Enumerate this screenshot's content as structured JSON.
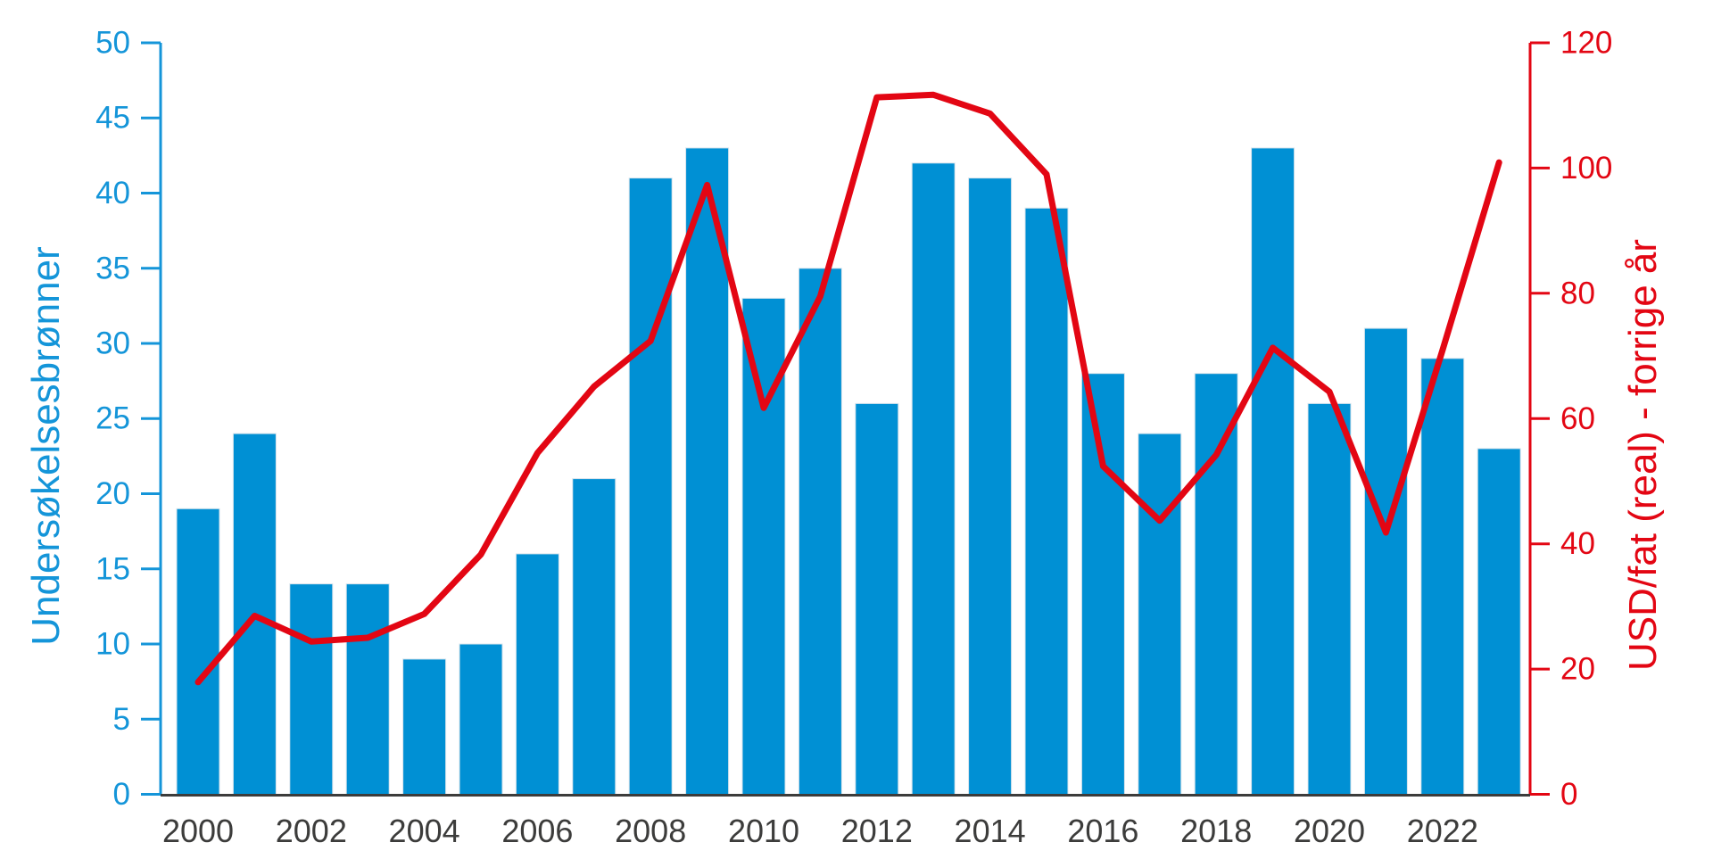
{
  "chart_data": {
    "type": "combo-bar-line",
    "title": "",
    "background": "#ffffff",
    "grid": false,
    "legend": "none",
    "categories": [
      2000,
      2001,
      2002,
      2003,
      2004,
      2005,
      2006,
      2007,
      2008,
      2009,
      2010,
      2011,
      2012,
      2013,
      2014,
      2015,
      2016,
      2017,
      2018,
      2019,
      2020,
      2021,
      2022,
      2023
    ],
    "series": [
      {
        "name": "Undersøkelsesbrønner",
        "type": "bar",
        "axis": "left",
        "color": "#0090d4",
        "edge_color": "#d8e4ec",
        "values": [
          19,
          24,
          14,
          14,
          9,
          10,
          16,
          21,
          41,
          43,
          33,
          35,
          26,
          42,
          41,
          39,
          28,
          24,
          28,
          43,
          26,
          31,
          29,
          23
        ]
      },
      {
        "name": "USD/fat (real) - forrige år",
        "type": "line",
        "axis": "right",
        "color": "#e30613",
        "values": [
          17.9,
          28.5,
          24.4,
          25.0,
          28.8,
          38.3,
          54.5,
          65.1,
          72.4,
          97.3,
          61.7,
          79.5,
          111.3,
          111.7,
          108.7,
          99.0,
          52.4,
          43.7,
          54.2,
          71.3,
          64.3,
          41.8,
          70.9,
          100.9
        ]
      }
    ],
    "left_axis": {
      "label": "Undersøkelsesbrønner",
      "min": 0,
      "max": 50,
      "ticks": [
        0,
        5,
        10,
        15,
        20,
        25,
        30,
        35,
        40,
        45,
        50
      ],
      "color": "#1495d9"
    },
    "right_axis": {
      "label": "USD/fat (real) - forrige år",
      "min": 0,
      "max": 120,
      "ticks": [
        0,
        20,
        40,
        60,
        80,
        100,
        120
      ],
      "color": "#e30613"
    },
    "x_axis": {
      "tick_labels": [
        "2000",
        "2002",
        "2004",
        "2006",
        "2008",
        "2010",
        "2012",
        "2014",
        "2016",
        "2018",
        "2020",
        "2022"
      ],
      "tick_years": [
        2000,
        2002,
        2004,
        2006,
        2008,
        2010,
        2012,
        2014,
        2016,
        2018,
        2020,
        2022
      ],
      "label_color": "#3c3c3b",
      "baseline_color": "#3c3c3b"
    }
  }
}
